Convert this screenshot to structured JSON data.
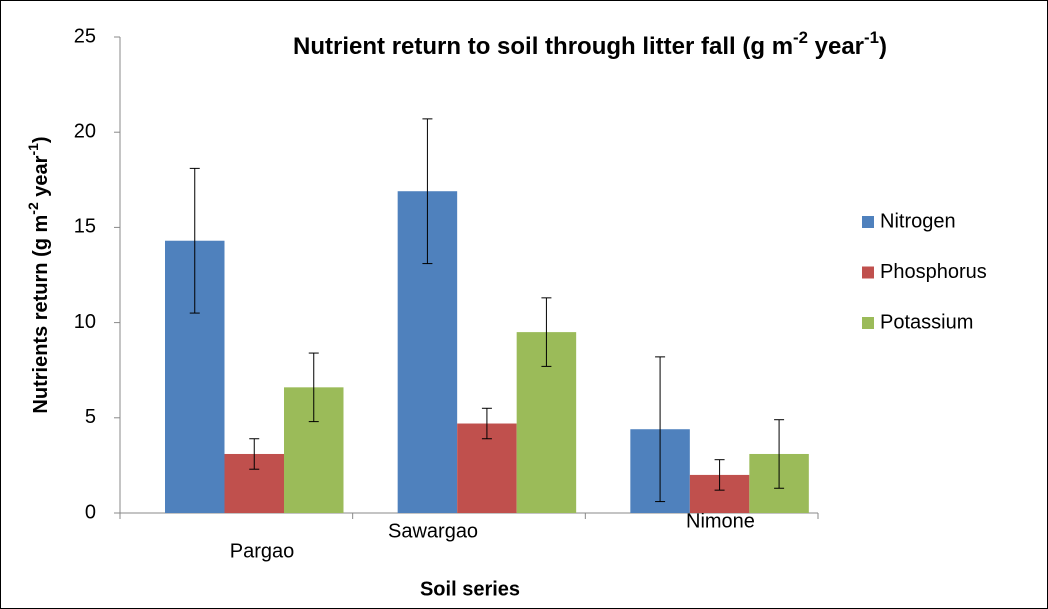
{
  "chart_data": {
    "type": "bar",
    "title": [
      "Nutrient return to soil through litter fall (g m",
      "-2",
      " year",
      "-1",
      ")"
    ],
    "x_label": "Soil series",
    "y_label": [
      "Nutrients return (g m",
      "-2",
      " year",
      "-1",
      ")"
    ],
    "categories": [
      "Pargao",
      "Sawargao",
      "Nimone"
    ],
    "series": [
      {
        "name": "Nitrogen",
        "color": "#4f81bd",
        "values": [
          14.3,
          16.9,
          4.4
        ],
        "errors": [
          3.8,
          3.8,
          3.8
        ]
      },
      {
        "name": "Phosphorus",
        "color": "#c0504d",
        "values": [
          3.1,
          4.7,
          2.0
        ],
        "errors": [
          0.8,
          0.8,
          0.8
        ]
      },
      {
        "name": "Potassium",
        "color": "#9bbb59",
        "values": [
          6.6,
          9.5,
          3.1
        ],
        "errors": [
          1.8,
          1.8,
          1.8
        ]
      }
    ],
    "ylim": [
      0,
      25
    ],
    "yticks": [
      0,
      5,
      10,
      15,
      20,
      25
    ],
    "grid": false,
    "legend": "right"
  }
}
